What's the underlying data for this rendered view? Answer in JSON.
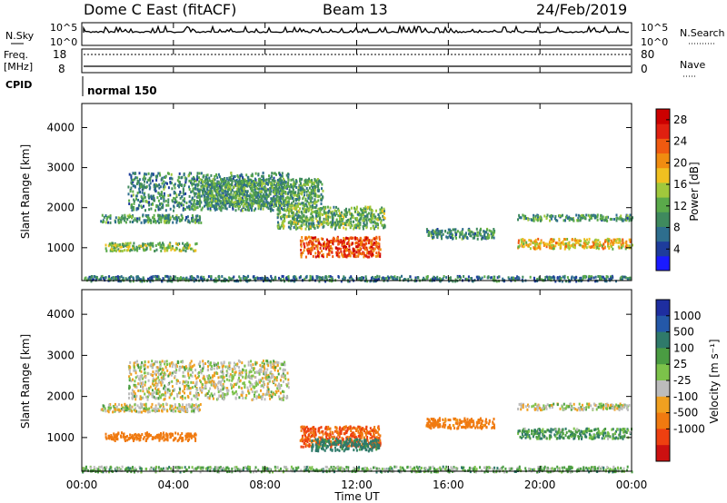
{
  "header": {
    "station": "Dome C East (fitACF)",
    "beam": "Beam 13",
    "date": "24/Feb/2019"
  },
  "panels": {
    "nsky": {
      "left_label": "N.Sky",
      "right_label": "N.Search",
      "ticks": [
        "10^5",
        "10^0"
      ]
    },
    "freq": {
      "left_label": "Freq.",
      "left_unit": "[MHz]",
      "ticks": [
        "18",
        "8"
      ],
      "right_label": "Nave",
      "right_ticks": [
        "80",
        "0"
      ]
    },
    "cpid": {
      "left_label": "CPID",
      "mode": "normal 150"
    }
  },
  "colors": {
    "power_scale": [
      "#1a1aff",
      "#1e3c9c",
      "#2e6e8e",
      "#3f8a5e",
      "#5aaa4a",
      "#a0c83c",
      "#f0c020",
      "#f08c10",
      "#f05a10",
      "#e02010",
      "#cc0000"
    ],
    "velocity_scale": [
      "#1e2ea0",
      "#2458a8",
      "#2f7a6a",
      "#4a9c42",
      "#7cc24a",
      "#bcbcbc",
      "#f0a020",
      "#f07a10",
      "#ee4010",
      "#cc1010"
    ]
  },
  "chart_data": [
    {
      "type": "heatmap",
      "name": "power",
      "ylabel": "Slant Range [km]",
      "xlabel": "Time UT",
      "x_ticks": [
        "00:00",
        "04:00",
        "08:00",
        "12:00",
        "16:00",
        "20:00",
        "00:00"
      ],
      "xlim": [
        0,
        24
      ],
      "y_ticks": [
        1000,
        2000,
        3000,
        4000
      ],
      "ylim": [
        180,
        4600
      ],
      "colorbar": {
        "label": "Power [dB]",
        "ticks": [
          4,
          8,
          12,
          16,
          20,
          24,
          28
        ],
        "range": [
          0,
          30
        ]
      },
      "regions": [
        {
          "x": [
            0.8,
            5.2
          ],
          "y": [
            1650,
            1850
          ],
          "value": 10
        },
        {
          "x": [
            2.0,
            9.0
          ],
          "y": [
            1950,
            2900
          ],
          "value": 9
        },
        {
          "x": [
            5.0,
            10.5
          ],
          "y": [
            2050,
            2750
          ],
          "value": 11
        },
        {
          "x": [
            1.0,
            5.0
          ],
          "y": [
            950,
            1150
          ],
          "value": 14
        },
        {
          "x": [
            8.5,
            13.2
          ],
          "y": [
            1500,
            2050
          ],
          "value": 12
        },
        {
          "x": [
            9.5,
            13.0
          ],
          "y": [
            800,
            1300
          ],
          "value": 24
        },
        {
          "x": [
            15.0,
            18.0
          ],
          "y": [
            1250,
            1500
          ],
          "value": 10
        },
        {
          "x": [
            19.0,
            24.0
          ],
          "y": [
            1000,
            1250
          ],
          "value": 18
        },
        {
          "x": [
            19.0,
            24.0
          ],
          "y": [
            1700,
            1850
          ],
          "value": 10
        },
        {
          "x": [
            0.0,
            24.0
          ],
          "y": [
            190,
            320
          ],
          "value": 8
        }
      ]
    },
    {
      "type": "heatmap",
      "name": "velocity",
      "ylabel": "Slant Range [km]",
      "xlabel": "Time UT",
      "x_ticks": [
        "00:00",
        "04:00",
        "08:00",
        "12:00",
        "16:00",
        "20:00",
        "00:00"
      ],
      "xlim": [
        0,
        24
      ],
      "y_ticks": [
        1000,
        2000,
        3000,
        4000
      ],
      "ylim": [
        180,
        4600
      ],
      "colorbar": {
        "label": "Velocity [m s⁻¹]",
        "ticks": [
          "1000",
          "500",
          "100",
          "25",
          "-25",
          "-100",
          "-500",
          "-1000"
        ]
      },
      "regions": [
        {
          "x": [
            0.8,
            5.2
          ],
          "y": [
            1650,
            1850
          ],
          "value": 0
        },
        {
          "x": [
            2.0,
            9.0
          ],
          "y": [
            1950,
            2900
          ],
          "value": 0
        },
        {
          "x": [
            1.0,
            5.0
          ],
          "y": [
            950,
            1150
          ],
          "value": -200
        },
        {
          "x": [
            9.5,
            13.0
          ],
          "y": [
            800,
            1300
          ],
          "value": -300
        },
        {
          "x": [
            10.0,
            13.0
          ],
          "y": [
            700,
            1000
          ],
          "value": 150
        },
        {
          "x": [
            15.0,
            18.0
          ],
          "y": [
            1250,
            1500
          ],
          "value": -150
        },
        {
          "x": [
            19.0,
            24.0
          ],
          "y": [
            1000,
            1250
          ],
          "value": 80
        },
        {
          "x": [
            19.0,
            24.0
          ],
          "y": [
            1700,
            1850
          ],
          "value": 0
        },
        {
          "x": [
            0.0,
            24.0
          ],
          "y": [
            190,
            320
          ],
          "value": 50
        }
      ]
    }
  ]
}
